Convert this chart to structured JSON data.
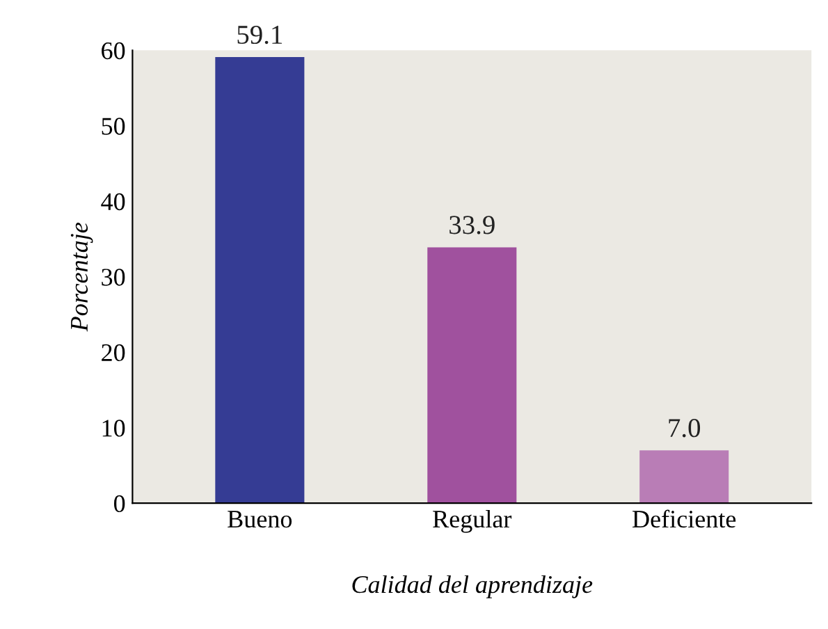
{
  "chart_data": {
    "type": "bar",
    "xlabel": "Calidad del aprendizaje",
    "ylabel": "Porcentaje",
    "categories": [
      "Bueno",
      "Regular",
      "Deficiente"
    ],
    "values": [
      59.1,
      33.9,
      7.0
    ],
    "colors": [
      "#353c94",
      "#a0519e",
      "#b97db6"
    ],
    "value_labels": [
      "59.1",
      "33.9",
      "7.0"
    ],
    "ylim": [
      0,
      60
    ],
    "yticks": [
      0,
      10,
      20,
      30,
      40,
      50,
      60
    ],
    "grid": false,
    "legend": false
  }
}
